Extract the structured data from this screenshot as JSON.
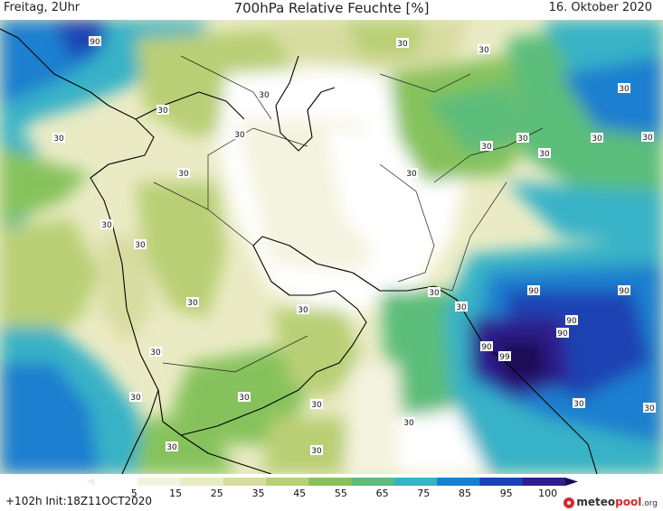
{
  "header": {
    "left": "Freitag, 2Uhr",
    "title": "700hPa Relative Feuchte [%]",
    "right": "16. Oktober 2020"
  },
  "footer": {
    "run_info": "+102h Init:18Z11OCT2020",
    "brand_prefix": "meteo",
    "brand_highlight": "pool",
    "brand_suffix": ".org"
  },
  "legend": {
    "ticks": [
      "5",
      "15",
      "25",
      "35",
      "45",
      "55",
      "65",
      "75",
      "85",
      "95",
      "100"
    ],
    "colors": [
      "#ffffff",
      "#f4f3df",
      "#eaebc4",
      "#d7dca0",
      "#b9cf74",
      "#86c25c",
      "#5cbd7a",
      "#38b2c6",
      "#1a7fcf",
      "#1b43b3",
      "#2e1f8c",
      "#1d0a54"
    ]
  },
  "contour_labels": [
    "90",
    "30",
    "30",
    "30",
    "30",
    "30",
    "30",
    "30",
    "30",
    "30",
    "30",
    "30",
    "30",
    "30",
    "30",
    "30",
    "30",
    "30",
    "30",
    "30",
    "30",
    "30",
    "30",
    "30",
    "30",
    "30",
    "30",
    "30",
    "90",
    "90",
    "90",
    "90",
    "90",
    "99",
    "30",
    "30"
  ]
}
